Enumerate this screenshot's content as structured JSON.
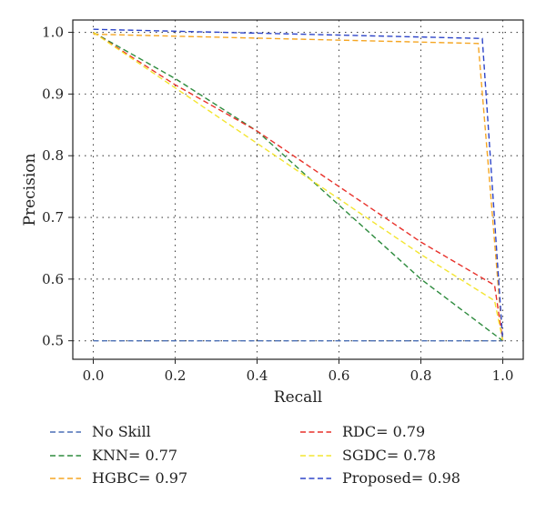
{
  "chart_data": {
    "type": "line",
    "title": "",
    "xlabel": "Recall",
    "ylabel": "Precision",
    "xlim": [
      -0.05,
      1.05
    ],
    "ylim": [
      0.47,
      1.02
    ],
    "xticks": [
      "0.0",
      "0.2",
      "0.4",
      "0.6",
      "0.8",
      "1.0"
    ],
    "yticks": [
      "0.5",
      "0.6",
      "0.7",
      "0.8",
      "0.9",
      "1.0"
    ],
    "grid": true,
    "legend_position": "below",
    "series": [
      {
        "name": "No Skill",
        "color": "#4a6fb5",
        "x": [
          0.0,
          1.0
        ],
        "y": [
          0.5,
          0.5
        ]
      },
      {
        "name": "KNN= 0.77",
        "color": "#2e8b3e",
        "x": [
          0.0,
          0.2,
          0.4,
          0.6,
          0.8,
          1.0
        ],
        "y": [
          1.0,
          0.925,
          0.84,
          0.72,
          0.6,
          0.5
        ]
      },
      {
        "name": "HGBC= 0.97",
        "color": "#f5a623",
        "x": [
          0.0,
          0.94,
          1.0
        ],
        "y": [
          0.997,
          0.982,
          0.5
        ]
      },
      {
        "name": "RDC= 0.79",
        "color": "#e8312a",
        "x": [
          0.0,
          0.2,
          0.4,
          0.6,
          0.8,
          0.98,
          1.0
        ],
        "y": [
          1.0,
          0.915,
          0.84,
          0.75,
          0.66,
          0.59,
          0.5
        ]
      },
      {
        "name": "SGDC= 0.78",
        "color": "#f3e530",
        "x": [
          0.0,
          0.2,
          0.4,
          0.6,
          0.8,
          0.98,
          1.0
        ],
        "y": [
          1.0,
          0.91,
          0.82,
          0.73,
          0.64,
          0.565,
          0.5
        ]
      },
      {
        "name": "Proposed= 0.98",
        "color": "#2e45c8",
        "x": [
          0.0,
          0.95,
          1.0
        ],
        "y": [
          1.005,
          0.99,
          0.5
        ]
      }
    ]
  }
}
